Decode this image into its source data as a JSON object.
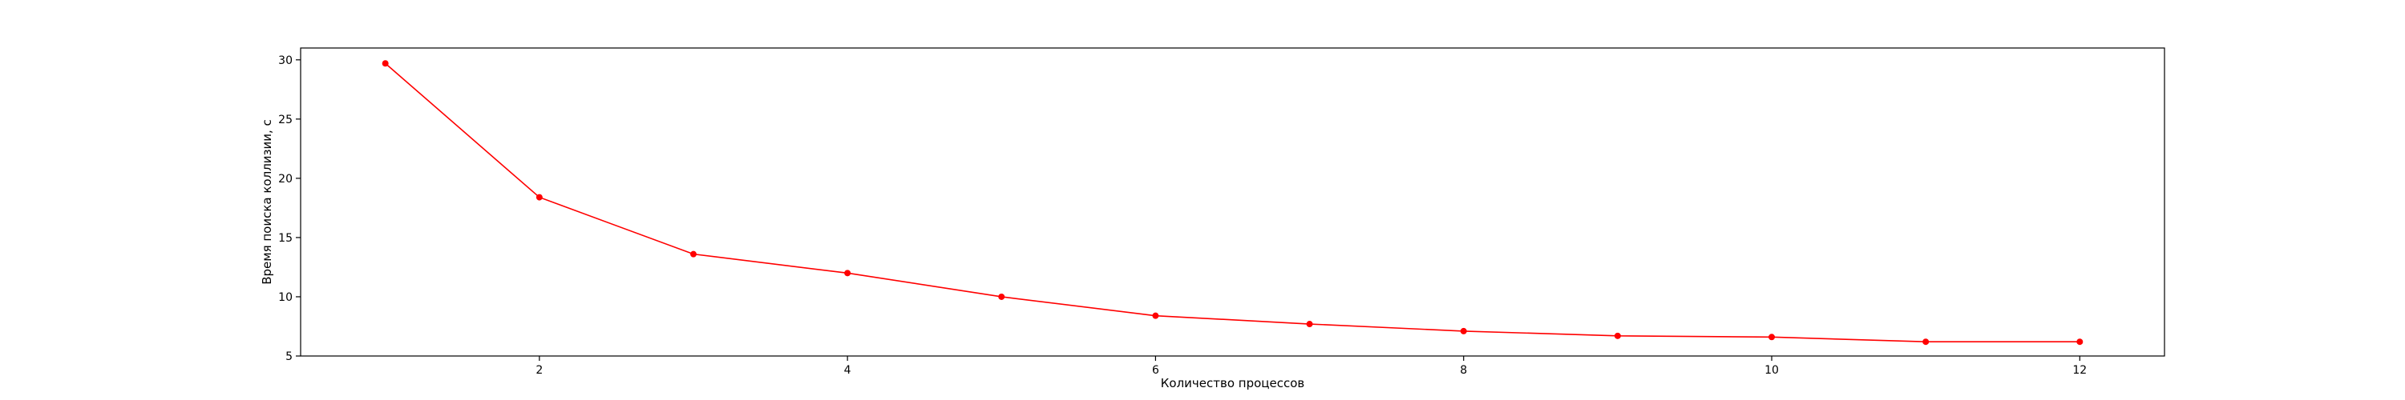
{
  "chart_data": {
    "type": "line",
    "title": "",
    "xlabel": "Количество процессов",
    "ylabel": "Время поиска коллизии, с",
    "xlim": [
      0.45,
      12.55
    ],
    "ylim": [
      5,
      31
    ],
    "x_ticks": [
      2,
      4,
      6,
      8,
      10,
      12
    ],
    "y_ticks": [
      5,
      10,
      15,
      20,
      25,
      30
    ],
    "grid": false,
    "legend": "none",
    "series": [
      {
        "color": "#ff0000",
        "marker": "circle",
        "x": [
          1,
          2,
          3,
          4,
          5,
          6,
          7,
          8,
          9,
          10,
          11,
          12
        ],
        "y": [
          29.7,
          18.4,
          13.6,
          12.0,
          10.0,
          8.4,
          7.7,
          7.1,
          6.7,
          6.6,
          6.2,
          6.2
        ]
      }
    ]
  }
}
